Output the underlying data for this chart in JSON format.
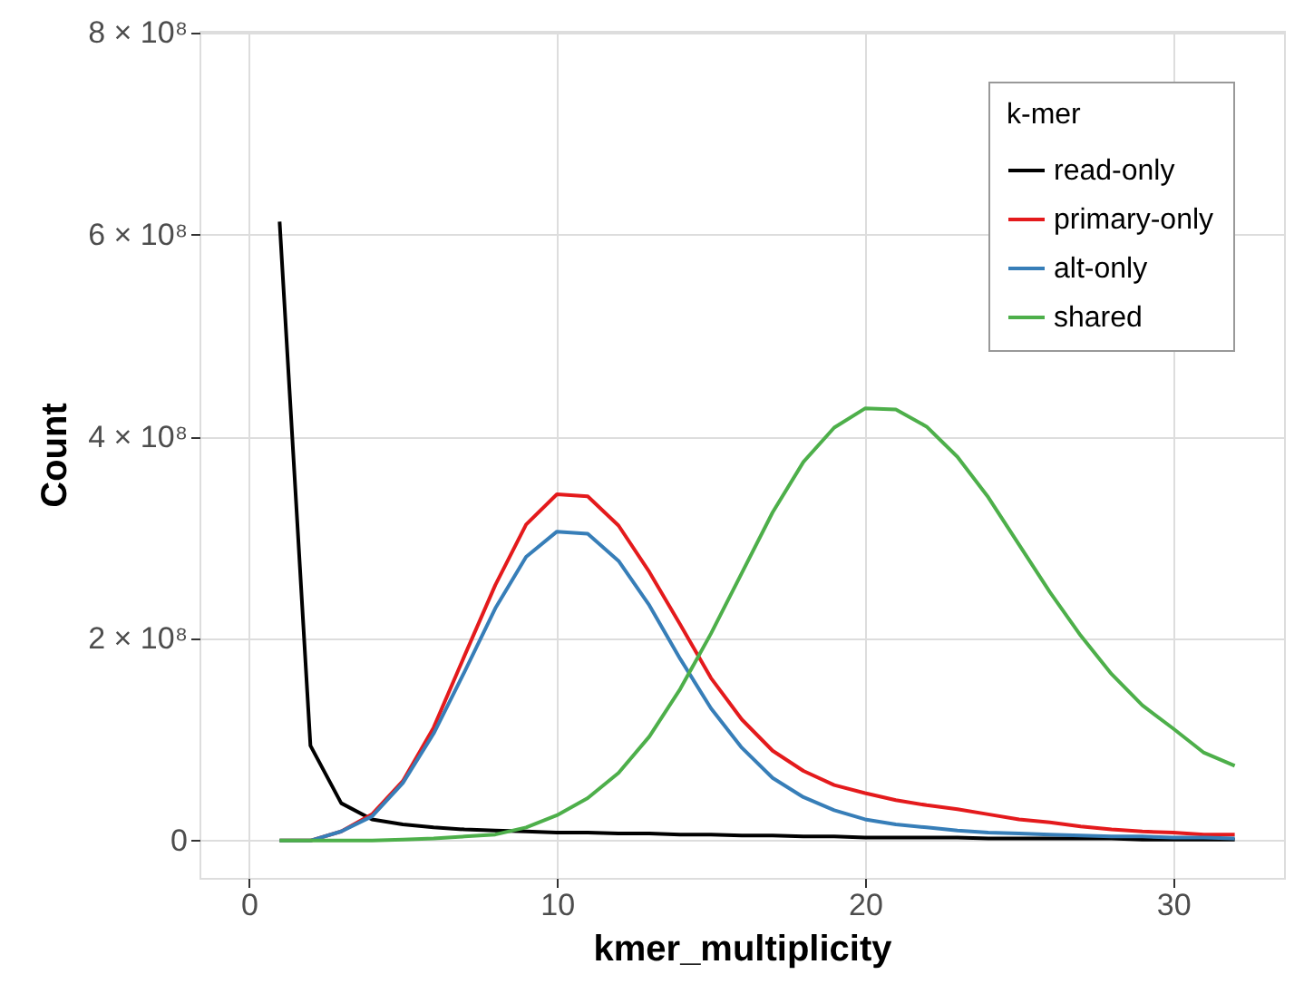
{
  "chart_data": {
    "type": "line",
    "xlabel": "kmer_multiplicity",
    "ylabel": "Count",
    "legend_title": "k-mer",
    "legend": "top right",
    "grid": true,
    "line_style": "solid",
    "marker": "none",
    "x": [
      1,
      2,
      3,
      4,
      5,
      6,
      7,
      8,
      9,
      10,
      11,
      12,
      13,
      14,
      15,
      16,
      17,
      18,
      19,
      20,
      21,
      22,
      23,
      24,
      25,
      26,
      27,
      28,
      29,
      30,
      31,
      32
    ],
    "xlim": [
      -1.6,
      33.6
    ],
    "xticks": [
      0,
      10,
      20,
      30
    ],
    "ylim": [
      -37000000.0,
      802000000.0
    ],
    "yticks": [
      {
        "value": 0,
        "label": "0"
      },
      {
        "value": 200000000.0,
        "label": "2 × 10⁸"
      },
      {
        "value": 400000000.0,
        "label": "4 × 10⁸"
      },
      {
        "value": 600000000.0,
        "label": "6 × 10⁸"
      },
      {
        "value": 800000000.0,
        "label": "8 × 10⁸"
      }
    ],
    "series": [
      {
        "name": "read-only",
        "color": "#000000",
        "values": [
          613000000.0,
          94000000.0,
          37000000.0,
          21000000.0,
          16000000.0,
          13000000.0,
          11000000.0,
          10000000.0,
          9000000.0,
          8000000.0,
          8000000.0,
          7000000.0,
          7000000.0,
          6000000.0,
          6000000.0,
          5000000.0,
          5000000.0,
          4000000.0,
          4000000.0,
          3000000.0,
          3000000.0,
          3000000.0,
          3000000.0,
          2000000.0,
          2000000.0,
          2000000.0,
          2000000.0,
          2000000.0,
          1000000.0,
          1000000.0,
          1000000.0,
          1000000.0
        ]
      },
      {
        "name": "primary-only",
        "color": "#e41a1c",
        "values": [
          0,
          0,
          9000000.0,
          26000000.0,
          59000000.0,
          112000000.0,
          183000000.0,
          253000000.0,
          313000000.0,
          343000000.0,
          341000000.0,
          312000000.0,
          266000000.0,
          214000000.0,
          161000000.0,
          120000000.0,
          89000000.0,
          69000000.0,
          55000000.0,
          47000000.0,
          40000000.0,
          35000000.0,
          31000000.0,
          26000000.0,
          21000000.0,
          18000000.0,
          14000000.0,
          11000000.0,
          9000000.0,
          8000000.0,
          6000000.0,
          6000000.0
        ]
      },
      {
        "name": "alt-only",
        "color": "#377eb8",
        "values": [
          0,
          0,
          9000000.0,
          24000000.0,
          57000000.0,
          106000000.0,
          167000000.0,
          230000000.0,
          281000000.0,
          306000000.0,
          304000000.0,
          277000000.0,
          233000000.0,
          180000000.0,
          131000000.0,
          92000000.0,
          62000000.0,
          43000000.0,
          30000000.0,
          21000000.0,
          16000000.0,
          13000000.0,
          10000000.0,
          8000000.0,
          7000000.0,
          6000000.0,
          5000000.0,
          4000000.0,
          4000000.0,
          3000000.0,
          3000000.0,
          2000000.0
        ]
      },
      {
        "name": "shared",
        "color": "#4daf4a",
        "values": [
          0,
          0,
          0,
          0,
          1000000.0,
          2000000.0,
          4000000.0,
          6000000.0,
          13000000.0,
          25000000.0,
          42000000.0,
          67000000.0,
          103000000.0,
          150000000.0,
          205000000.0,
          265000000.0,
          325000000.0,
          375000000.0,
          409000000.0,
          428000000.0,
          427000000.0,
          410000000.0,
          380000000.0,
          340000000.0,
          293000000.0,
          246000000.0,
          203000000.0,
          165000000.0,
          134000000.0,
          111000000.0,
          87000000.0,
          74000000.0
        ]
      }
    ]
  }
}
